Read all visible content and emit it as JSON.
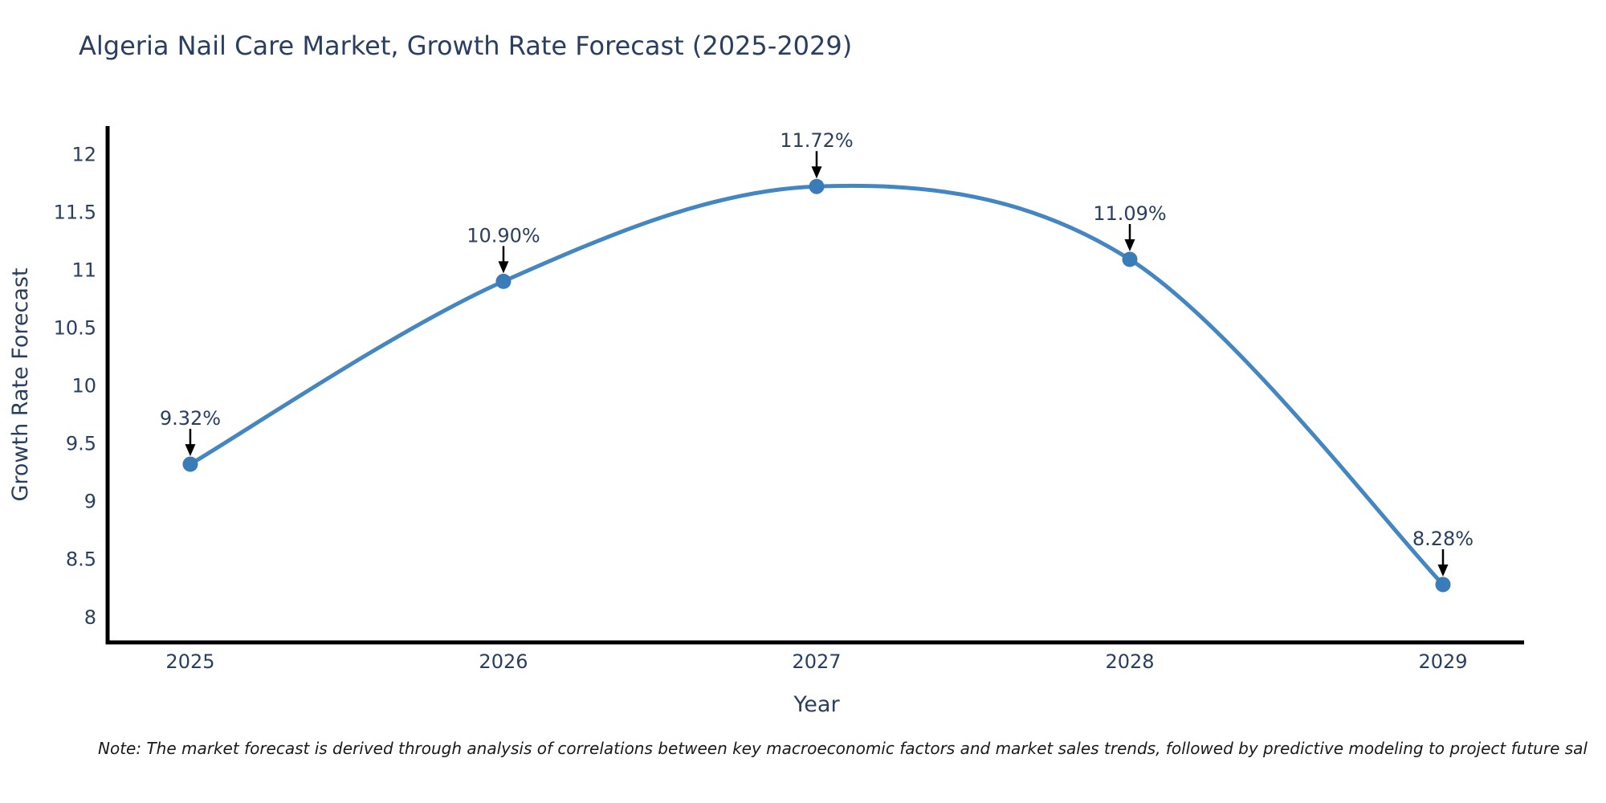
{
  "page": {
    "note": "Note: The market forecast is derived through analysis of correlations between key macroeconomic factors and market sales trends, followed by predictive modeling to project future sal"
  },
  "chart_data": {
    "type": "line",
    "title": "Algeria Nail Care Market, Growth Rate Forecast (2025-2029)",
    "xlabel": "Year",
    "ylabel": "Growth Rate Forecast",
    "x": [
      2025,
      2026,
      2027,
      2028,
      2029
    ],
    "series": [
      {
        "name": "Growth Rate Forecast",
        "values": [
          9.32,
          10.9,
          11.72,
          11.09,
          8.28
        ]
      }
    ],
    "point_labels": [
      "9.32%",
      "10.90%",
      "11.72%",
      "11.09%",
      "8.28%"
    ],
    "xticks": [
      2025,
      2026,
      2027,
      2028,
      2029
    ],
    "yticks": [
      8,
      8.5,
      9,
      9.5,
      10,
      10.5,
      11,
      11.5,
      12
    ],
    "xlim": [
      2024.736,
      2029.259
    ],
    "ylim": [
      7.78,
      12.235
    ],
    "grid": false,
    "legend": "none",
    "curve": "spline",
    "annotations": "value-labels-with-down-arrows",
    "colors": {
      "line": "#4386c1",
      "marker": "#3a7cb8",
      "axis": "#000000",
      "text": "#2a3f5f",
      "annotation_text": "#2a3f5f",
      "annotation_arrow": "#000000",
      "note_text": "#1a1a1a",
      "background": "#ffffff"
    }
  }
}
